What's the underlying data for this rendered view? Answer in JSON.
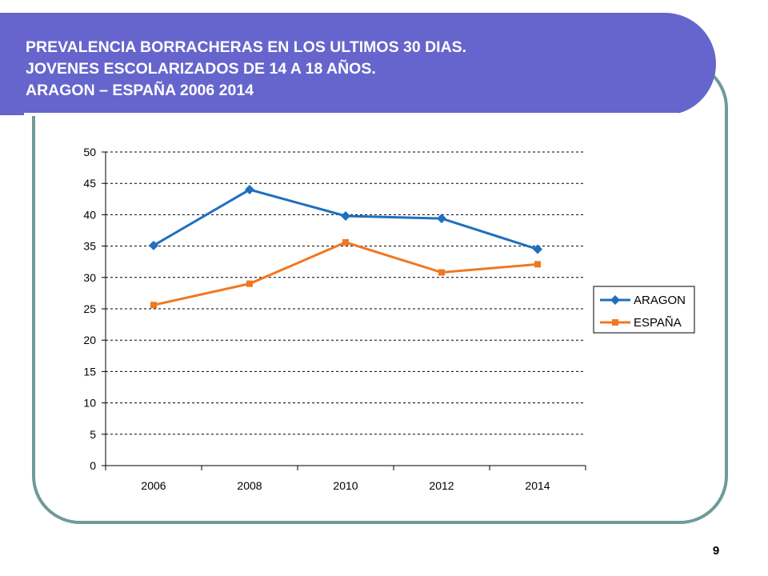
{
  "title_lines": [
    "PREVALENCIA BORRACHERAS EN LOS ULTIMOS 30 DIAS.",
    "JOVENES ESCOLARIZADOS DE 14 A 18 AÑOS.",
    "ARAGON – ESPAÑA 2006 2014"
  ],
  "page_number": "9",
  "chart_data": {
    "type": "line",
    "title": "",
    "xlabel": "",
    "ylabel": "",
    "categories": [
      "2006",
      "2008",
      "2010",
      "2012",
      "2014"
    ],
    "ylim": [
      0,
      50
    ],
    "yticks": [
      0,
      5,
      10,
      15,
      20,
      25,
      30,
      35,
      40,
      45,
      50
    ],
    "grid": "horizontal dashed",
    "legend": "right",
    "series": [
      {
        "name": "ARAGON",
        "values": [
          35.1,
          44.0,
          39.8,
          39.4,
          34.5
        ],
        "color": "#1f6fc0",
        "marker": "diamond"
      },
      {
        "name": "ESPAÑA",
        "values": [
          25.6,
          29.0,
          35.6,
          30.8,
          32.1
        ],
        "color": "#f07820",
        "marker": "square"
      }
    ]
  }
}
